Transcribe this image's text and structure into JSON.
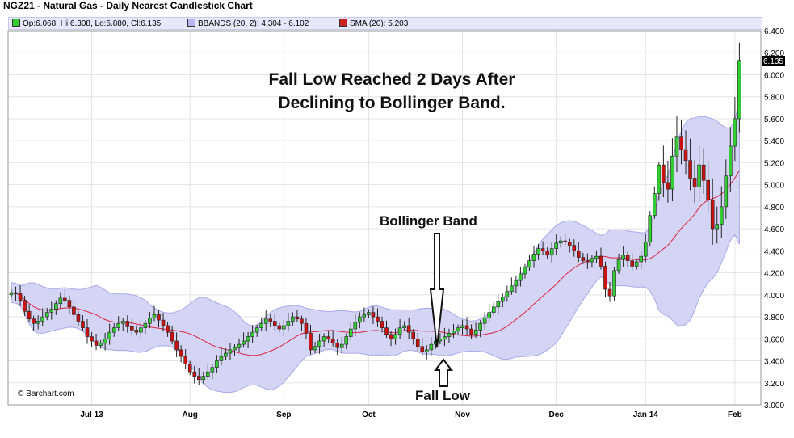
{
  "header": {
    "title": "NGZ21 - Natural Gas - Daily Nearest Candlestick Chart"
  },
  "legend": [
    {
      "label": "Op:6.068, Hi:6.308, Lo:5.880, Cl:6.135",
      "color": "#33cc33"
    },
    {
      "label": "BBANDS (20, 2): 4.304 - 6.102",
      "color": "#b8b8f0"
    },
    {
      "label": "SMA (20): 5.203",
      "color": "#cc2222"
    }
  ],
  "annotations": {
    "headline_line1": "Fall Low Reached 2 Days After",
    "headline_line2": "Declining to Bollinger Band.",
    "bollinger_label": "Bollinger Band",
    "fall_low_label": "Fall Low"
  },
  "credit": "© Barchart.com",
  "chart_data": {
    "type": "candlestick",
    "title": "NGZ21 - Natural Gas - Daily Nearest Candlestick Chart",
    "ylim": [
      3.0,
      6.4
    ],
    "yticks": [
      "3.000",
      "3.200",
      "3.400",
      "3.600",
      "3.800",
      "4.000",
      "4.200",
      "4.400",
      "4.600",
      "4.800",
      "5.000",
      "5.200",
      "5.400",
      "5.600",
      "5.800",
      "6.000",
      "6.200",
      "6.400"
    ],
    "xticks": [
      "Jul 13",
      "Aug",
      "Sep",
      "Oct",
      "Nov",
      "Dec",
      "Jan 14",
      "Feb"
    ],
    "last_price": "6.135",
    "colors": {
      "up": "#33cc33",
      "down": "#cc1111",
      "band": "#d4d4f4",
      "band_edge": "#a9a9e6",
      "sma": "#dd2244"
    },
    "grid": true,
    "close": [
      4.02,
      4.01,
      3.95,
      3.85,
      3.78,
      3.74,
      3.76,
      3.8,
      3.84,
      3.87,
      3.92,
      3.97,
      3.95,
      3.89,
      3.82,
      3.76,
      3.7,
      3.62,
      3.58,
      3.54,
      3.56,
      3.6,
      3.66,
      3.7,
      3.74,
      3.76,
      3.71,
      3.68,
      3.66,
      3.7,
      3.74,
      3.79,
      3.82,
      3.77,
      3.72,
      3.66,
      3.58,
      3.5,
      3.44,
      3.37,
      3.3,
      3.26,
      3.23,
      3.26,
      3.3,
      3.34,
      3.4,
      3.44,
      3.47,
      3.5,
      3.52,
      3.55,
      3.58,
      3.62,
      3.66,
      3.7,
      3.74,
      3.78,
      3.76,
      3.72,
      3.69,
      3.72,
      3.76,
      3.8,
      3.78,
      3.74,
      3.65,
      3.5,
      3.53,
      3.58,
      3.62,
      3.6,
      3.56,
      3.52,
      3.55,
      3.62,
      3.69,
      3.75,
      3.8,
      3.82,
      3.84,
      3.8,
      3.76,
      3.7,
      3.64,
      3.6,
      3.64,
      3.7,
      3.72,
      3.66,
      3.6,
      3.53,
      3.48,
      3.5,
      3.55,
      3.58,
      3.6,
      3.62,
      3.65,
      3.67,
      3.7,
      3.72,
      3.69,
      3.64,
      3.68,
      3.74,
      3.79,
      3.84,
      3.89,
      3.94,
      3.98,
      4.03,
      4.08,
      4.13,
      4.19,
      4.25,
      4.31,
      4.37,
      4.42,
      4.4,
      4.36,
      4.42,
      4.47,
      4.49,
      4.48,
      4.45,
      4.4,
      4.34,
      4.31,
      4.3,
      4.33,
      4.35,
      4.26,
      4.05,
      3.99,
      4.22,
      4.32,
      4.36,
      4.31,
      4.26,
      4.3,
      4.35,
      4.48,
      4.72,
      4.92,
      5.18,
      5.02,
      4.96,
      5.26,
      5.44,
      5.32,
      5.22,
      5.06,
      4.98,
      5.18,
      5.04,
      4.86,
      4.6,
      4.64,
      4.8,
      5.08,
      5.35,
      5.6,
      6.13
    ]
  }
}
